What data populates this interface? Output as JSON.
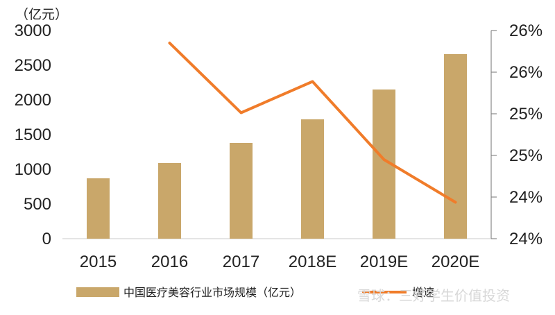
{
  "chart_data": {
    "type": "bar",
    "unit_label": "（亿元）",
    "categories": [
      "2015",
      "2016",
      "2017",
      "2018E",
      "2019E",
      "2020E"
    ],
    "series": [
      {
        "name": "中国医疗美容行业市场规模（亿元）",
        "type": "bar",
        "axis": "left",
        "color": "#c9a76a",
        "values": [
          870,
          1090,
          1380,
          1720,
          2150,
          2660
        ]
      },
      {
        "name": "增速",
        "type": "line",
        "axis": "right",
        "color": "#f07c2a",
        "values": [
          null,
          0.2588,
          0.2521,
          0.2551,
          0.2476,
          0.2435
        ]
      }
    ],
    "ylim_left": [
      0,
      3000
    ],
    "yticks_left": [
      "0",
      "500",
      "1000",
      "1500",
      "2000",
      "2500",
      "3000"
    ],
    "ylim_right": [
      0.24,
      0.26
    ],
    "yticks_right": [
      "24%",
      "24%",
      "25%",
      "25%",
      "26%",
      "26%"
    ],
    "grid": false,
    "legend_position": "bottom"
  },
  "watermark": "雪球：三好学生价值投资"
}
